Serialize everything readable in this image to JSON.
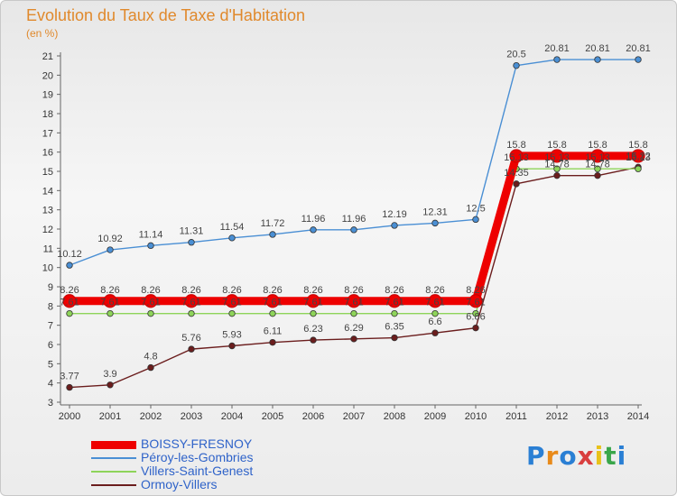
{
  "header": {
    "title": "Evolution du Taux de Taxe d'Habitation",
    "unit_label": "(en %)"
  },
  "logo": {
    "text": "Proxiti"
  },
  "chart_data": {
    "type": "line",
    "title": "Evolution du Taux de Taxe d'Habitation",
    "ylabel": "(en %)",
    "xlabel": "",
    "x": [
      2000,
      2001,
      2002,
      2003,
      2004,
      2005,
      2006,
      2007,
      2008,
      2009,
      2010,
      2011,
      2012,
      2013,
      2014
    ],
    "ylim": [
      3,
      21
    ],
    "yticks": [
      3,
      4,
      5,
      6,
      7,
      8,
      9,
      10,
      11,
      12,
      13,
      14,
      15,
      16,
      17,
      18,
      19,
      20,
      21
    ],
    "grid": false,
    "legend_position": "bottom-left",
    "series": [
      {
        "name": "BOISSY-FRESNOY",
        "color": "#ee0000",
        "style": "thick",
        "values": [
          8.26,
          8.26,
          8.26,
          8.26,
          8.26,
          8.26,
          8.26,
          8.26,
          8.26,
          8.26,
          8.26,
          15.8,
          15.8,
          15.8,
          15.8
        ],
        "labels": [
          "8.26",
          "8.26",
          "8.26",
          "8.26",
          "8.26",
          "8.26",
          "8.26",
          "8.26",
          "8.26",
          "8.26",
          "8.26",
          "15.8",
          "15.8",
          "15.8",
          "15.8"
        ]
      },
      {
        "name": "Péroy-les-Gombries",
        "color": "#4a8fd4",
        "style": "line",
        "values": [
          10.12,
          10.92,
          11.14,
          11.31,
          11.54,
          11.72,
          11.96,
          11.96,
          12.19,
          12.31,
          12.5,
          20.5,
          20.81,
          20.81,
          20.81
        ],
        "labels": [
          "10.12",
          "10.92",
          "11.14",
          "11.31",
          "11.54",
          "11.72",
          "11.96",
          "11.96",
          "12.19",
          "12.31",
          "12.5",
          "20.5",
          "20.81",
          "20.81",
          "20.81"
        ]
      },
      {
        "name": "Villers-Saint-Genest",
        "color": "#8ed45a",
        "style": "line",
        "values": [
          7.61,
          7.61,
          7.61,
          7.61,
          7.61,
          7.61,
          7.61,
          7.61,
          7.61,
          7.61,
          7.61,
          15.13,
          15.13,
          15.13,
          15.13
        ],
        "labels": [
          "7.61",
          "7.61",
          "7.61",
          "7.61",
          "7.61",
          "7.61",
          "7.61",
          "7.61",
          "7.61",
          "7.61",
          "7.61",
          "15.13",
          "15.13",
          "15.13",
          "15.13"
        ]
      },
      {
        "name": "Ormoy-Villers",
        "color": "#6b1d1d",
        "style": "line",
        "values": [
          3.77,
          3.9,
          4.8,
          5.76,
          5.93,
          6.11,
          6.23,
          6.29,
          6.35,
          6.6,
          6.86,
          14.35,
          14.78,
          14.78,
          15.22
        ],
        "labels": [
          "3.77",
          "3.9",
          "4.8",
          "5.76",
          "5.93",
          "6.11",
          "6.23",
          "6.29",
          "6.35",
          "6.6",
          "6.86",
          "14.35",
          "14.78",
          "14.78",
          "15.22"
        ]
      }
    ]
  }
}
